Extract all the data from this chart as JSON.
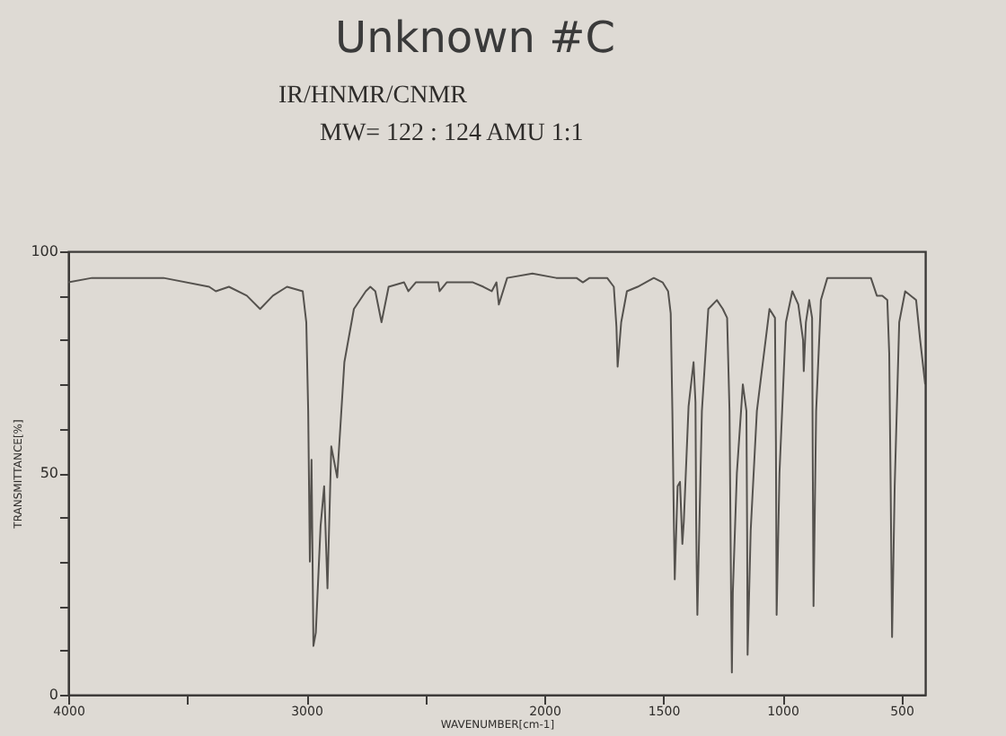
{
  "chart_data": {
    "type": "line",
    "title": "Unknown #C",
    "subtitle": "IR/HNMR/CNMR",
    "annotations": [
      "MW= 122 : 124 AMU 1:1"
    ],
    "xlabel": "WAVENUMBER[cm-1]",
    "ylabel": "TRANSMITTANCE[%]",
    "color": "#55524e",
    "xlim": [
      4000,
      400
    ],
    "xticks": [
      4000,
      {
        "value": 3500,
        "label": null
      },
      3000,
      {
        "value": 2500,
        "label": null
      },
      2000,
      1500,
      1000,
      500
    ],
    "ylim": [
      0,
      100
    ],
    "yticks": [
      0,
      {
        "value": 10,
        "label": null
      },
      {
        "value": 20,
        "label": null
      },
      {
        "value": 30,
        "label": null
      },
      {
        "value": 40,
        "label": null
      },
      50,
      {
        "value": 60,
        "label": null
      },
      {
        "value": 70,
        "label": null
      },
      {
        "value": 80,
        "label": null
      },
      {
        "value": 90,
        "label": null
      },
      100
    ],
    "x": [
      4000,
      3900,
      3767,
      3600,
      3408,
      3380,
      3325,
      3250,
      3194,
      3140,
      3081,
      3015,
      3000,
      2992,
      2985,
      2978,
      2970,
      2960,
      2940,
      2925,
      2911,
      2895,
      2870,
      2840,
      2800,
      2750,
      2731,
      2710,
      2684,
      2654,
      2589,
      2571,
      2540,
      2446,
      2440,
      2410,
      2300,
      2256,
      2221,
      2201,
      2191,
      2156,
      2050,
      1950,
      1865,
      1838,
      1810,
      1736,
      1708,
      1697,
      1692,
      1677,
      1653,
      1608,
      1540,
      1503,
      1480,
      1469,
      1462,
      1456,
      1452,
      1440,
      1430,
      1420,
      1414,
      1394,
      1373,
      1365,
      1362,
      1360,
      1357,
      1338,
      1311,
      1275,
      1250,
      1232,
      1222,
      1215,
      1212,
      1208,
      1191,
      1166,
      1151,
      1148,
      1146,
      1133,
      1107,
      1084,
      1054,
      1031,
      1027,
      1024,
      1012,
      985,
      958,
      933,
      913,
      910,
      901,
      887,
      875,
      872,
      869,
      858,
      838,
      811,
      700,
      628,
      603,
      580,
      559,
      551,
      545,
      539,
      528,
      509,
      484,
      438,
      421,
      400
    ],
    "values": [
      93,
      94,
      94,
      94,
      92,
      91,
      92,
      90,
      87,
      90,
      92,
      91,
      84,
      64,
      30,
      53,
      11,
      14,
      38,
      47,
      24,
      56,
      49,
      75,
      87,
      91,
      92,
      91,
      84,
      92,
      93,
      91,
      93,
      93,
      91,
      93,
      93,
      92,
      91,
      93,
      88,
      94,
      95,
      94,
      94,
      93,
      94,
      94,
      92,
      83,
      74,
      84,
      91,
      92,
      94,
      93,
      91,
      86,
      64,
      40,
      26,
      47,
      48,
      34,
      39,
      65,
      75,
      66,
      39,
      29,
      18,
      64,
      87,
      89,
      87,
      85,
      64,
      20,
      5,
      23,
      50,
      70,
      64,
      37,
      9,
      37,
      64,
      74,
      87,
      85,
      57,
      18,
      50,
      84,
      91,
      88,
      80,
      73,
      84,
      89,
      85,
      50,
      20,
      64,
      89,
      94,
      94,
      94,
      90,
      90,
      89,
      77,
      47,
      13,
      47,
      84,
      91,
      89,
      80,
      70
    ]
  }
}
